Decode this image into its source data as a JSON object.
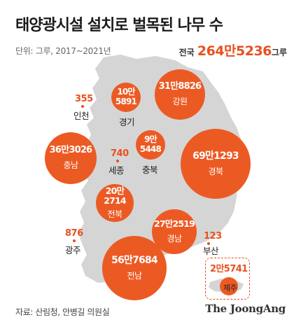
{
  "header": {
    "title": "태양광시설 설치로 벌목된 나무 수",
    "unit": "단위: 그루, 2017~2021년",
    "total_label": "전국",
    "total_value": "264만5236",
    "total_suffix": "그루"
  },
  "colors": {
    "accent": "#ec5a24",
    "map": "#d5d5d5"
  },
  "regions": {
    "gangwon": {
      "name": "강원",
      "value": "31만8826"
    },
    "gyeonggi": {
      "name": "경기",
      "value_line1": "10만",
      "value_line2": "5891"
    },
    "incheon": {
      "name": "인천",
      "value": "355"
    },
    "chungbuk": {
      "name": "충북",
      "value_line1": "9만",
      "value_line2": "5448"
    },
    "chungnam": {
      "name": "충남",
      "value": "36만3026"
    },
    "sejong": {
      "name": "세종",
      "value": "740"
    },
    "gyeongbuk": {
      "name": "경북",
      "value": "69만1293"
    },
    "jeonbuk": {
      "name": "전북",
      "value_line1": "20만",
      "value_line2": "2714"
    },
    "gyeongnam": {
      "name": "경남",
      "value": "27만2519"
    },
    "gwangju": {
      "name": "광주",
      "value": "876"
    },
    "busan": {
      "name": "부산",
      "value": "123"
    },
    "jeonnam": {
      "name": "전남",
      "value": "56만7684"
    },
    "jeju": {
      "name": "제주",
      "value": "2만5741"
    }
  },
  "footer": {
    "source": "자료: 산림청, 안병길 의원실",
    "brand": "The JoongAng"
  }
}
